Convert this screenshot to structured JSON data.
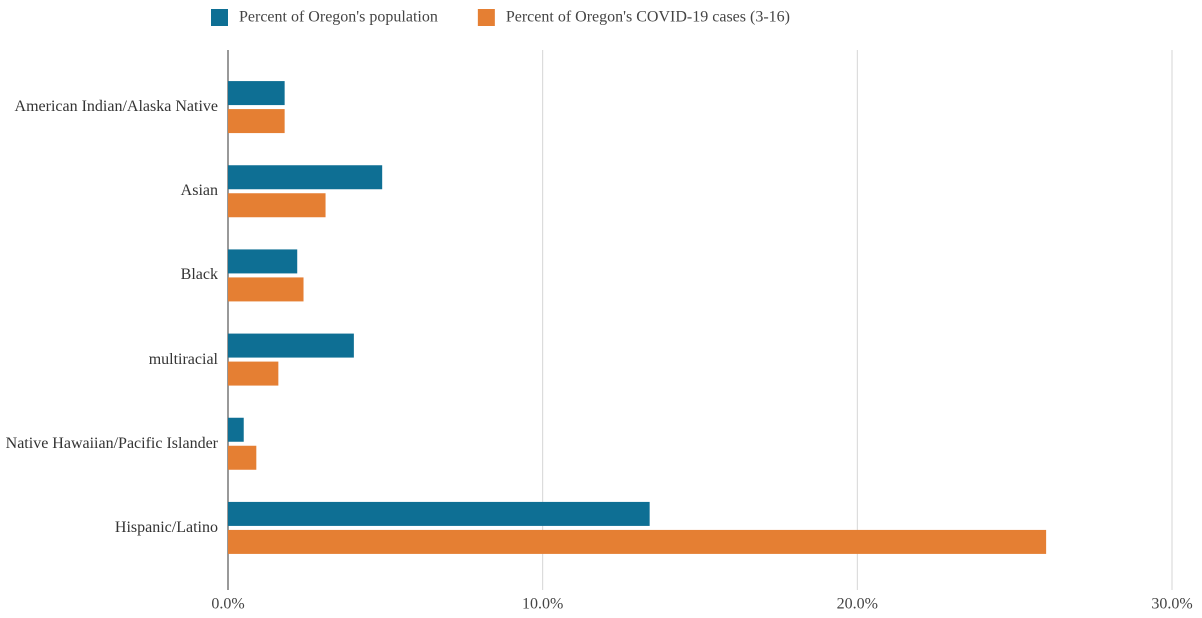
{
  "chart_data": {
    "type": "hbar",
    "categories": [
      "American Indian/Alaska Native",
      "Asian",
      "Black",
      "multiracial",
      "Native Hawaiian/Pacific Islander",
      "Hispanic/Latino"
    ],
    "series": [
      {
        "name": "Percent of Oregon's population",
        "color": "#0e6f94",
        "values": [
          1.8,
          4.9,
          2.2,
          4.0,
          0.5,
          13.4
        ]
      },
      {
        "name": "Percent of Oregon's COVID-19 cases (3-16)",
        "color": "#e57f33",
        "values": [
          1.8,
          3.1,
          2.4,
          1.6,
          0.9,
          26.0
        ]
      }
    ],
    "xlim": [
      0,
      30
    ],
    "xticks": [
      {
        "value": 0,
        "label": "0.0%"
      },
      {
        "value": 10,
        "label": "10.0%"
      },
      {
        "value": 20,
        "label": "20.0%"
      },
      {
        "value": 30,
        "label": "30.0%"
      }
    ],
    "grid": true,
    "legend": "top"
  }
}
